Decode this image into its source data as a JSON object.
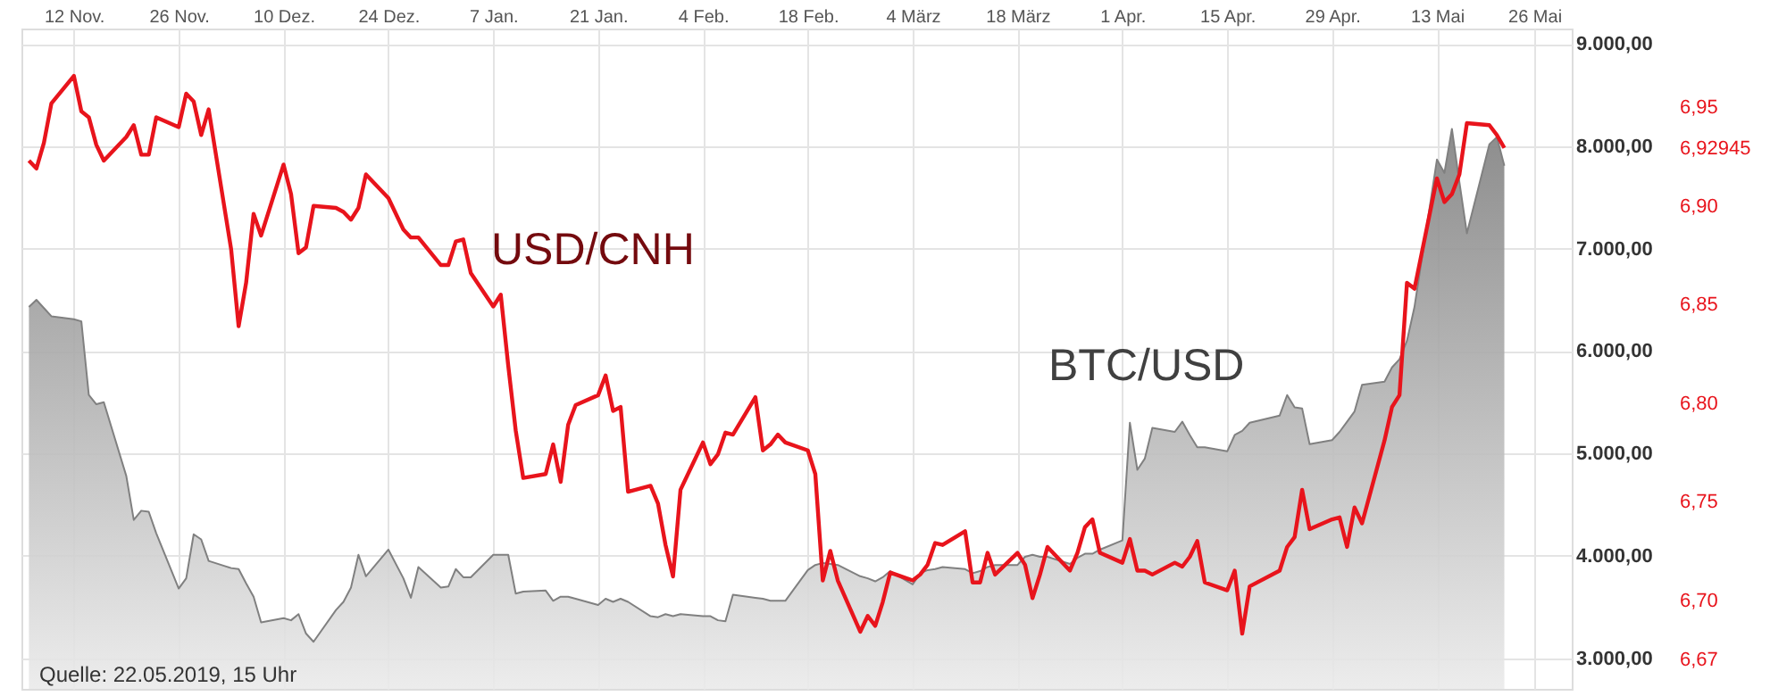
{
  "chart_data": {
    "type": "line",
    "annotations": [
      "Quelle: 22.05.2019, 15 Uhr"
    ],
    "xlim": [
      "2018-11-05",
      "2019-05-31"
    ],
    "xticks": [
      {
        "value": "2018-11-12",
        "label": "12 Nov."
      },
      {
        "value": "2018-11-26",
        "label": "26 Nov."
      },
      {
        "value": "2018-12-10",
        "label": "10 Dez."
      },
      {
        "value": "2018-12-24",
        "label": "24 Dez."
      },
      {
        "value": "2019-01-07",
        "label": "7 Jan."
      },
      {
        "value": "2019-01-21",
        "label": "21 Jan."
      },
      {
        "value": "2019-02-04",
        "label": "4 Feb."
      },
      {
        "value": "2019-02-18",
        "label": "18 Feb."
      },
      {
        "value": "2019-03-04",
        "label": "4 März"
      },
      {
        "value": "2019-03-18",
        "label": "18 März"
      },
      {
        "value": "2019-04-01",
        "label": "1 Apr."
      },
      {
        "value": "2019-04-15",
        "label": "15 Apr."
      },
      {
        "value": "2019-04-29",
        "label": "29 Apr."
      },
      {
        "value": "2019-05-13",
        "label": "13 Mai"
      },
      {
        "value": "2019-05-26",
        "label": "26 Mai"
      }
    ],
    "ylim": [
      2700,
      9150
    ],
    "yticks": [
      {
        "value": 3000,
        "label": "3.000,00"
      },
      {
        "value": 4000,
        "label": "4.000,00"
      },
      {
        "value": 5000,
        "label": "5.000,00"
      },
      {
        "value": 6000,
        "label": "6.000,00"
      },
      {
        "value": 7000,
        "label": "7.000,00"
      },
      {
        "value": 8000,
        "label": "8.000,00"
      },
      {
        "value": 9000,
        "label": "9.000,00"
      }
    ],
    "y2lim": [
      6.655,
      6.99
    ],
    "y2ticks": [
      {
        "value": 6.67,
        "label": "6,67"
      },
      {
        "value": 6.7,
        "label": "6,70"
      },
      {
        "value": 6.75,
        "label": "6,75"
      },
      {
        "value": 6.8,
        "label": "6,80"
      },
      {
        "value": 6.85,
        "label": "6,85"
      },
      {
        "value": 6.9,
        "label": "6,90"
      },
      {
        "value": 6.92945,
        "label": "6,92945"
      },
      {
        "value": 6.95,
        "label": "6,95"
      }
    ],
    "grid": true,
    "marker": "none",
    "line_style": "solid",
    "x": [
      "2018-11-06",
      "2018-11-07",
      "2018-11-08",
      "2018-11-09",
      "2018-11-12",
      "2018-11-13",
      "2018-11-14",
      "2018-11-15",
      "2018-11-16",
      "2018-11-19",
      "2018-11-20",
      "2018-11-21",
      "2018-11-22",
      "2018-11-23",
      "2018-11-26",
      "2018-11-27",
      "2018-11-28",
      "2018-11-29",
      "2018-11-30",
      "2018-12-03",
      "2018-12-04",
      "2018-12-05",
      "2018-12-06",
      "2018-12-07",
      "2018-12-10",
      "2018-12-11",
      "2018-12-12",
      "2018-12-13",
      "2018-12-14",
      "2018-12-17",
      "2018-12-18",
      "2018-12-19",
      "2018-12-20",
      "2018-12-21",
      "2018-12-24",
      "2018-12-26",
      "2018-12-27",
      "2018-12-28",
      "2018-12-31",
      "2019-01-01",
      "2019-01-02",
      "2019-01-03",
      "2019-01-04",
      "2019-01-07",
      "2019-01-08",
      "2019-01-09",
      "2019-01-10",
      "2019-01-11",
      "2019-01-14",
      "2019-01-15",
      "2019-01-16",
      "2019-01-17",
      "2019-01-18",
      "2019-01-21",
      "2019-01-22",
      "2019-01-23",
      "2019-01-24",
      "2019-01-25",
      "2019-01-28",
      "2019-01-29",
      "2019-01-30",
      "2019-01-31",
      "2019-02-01",
      "2019-02-04",
      "2019-02-05",
      "2019-02-06",
      "2019-02-07",
      "2019-02-08",
      "2019-02-11",
      "2019-02-12",
      "2019-02-13",
      "2019-02-14",
      "2019-02-15",
      "2019-02-18",
      "2019-02-19",
      "2019-02-20",
      "2019-02-21",
      "2019-02-22",
      "2019-02-25",
      "2019-02-26",
      "2019-02-27",
      "2019-02-28",
      "2019-03-01",
      "2019-03-04",
      "2019-03-05",
      "2019-03-06",
      "2019-03-07",
      "2019-03-08",
      "2019-03-11",
      "2019-03-12",
      "2019-03-13",
      "2019-03-14",
      "2019-03-15",
      "2019-03-18",
      "2019-03-19",
      "2019-03-20",
      "2019-03-21",
      "2019-03-22",
      "2019-03-25",
      "2019-03-26",
      "2019-03-27",
      "2019-03-28",
      "2019-03-29",
      "2019-04-01",
      "2019-04-02",
      "2019-04-03",
      "2019-04-04",
      "2019-04-05",
      "2019-04-08",
      "2019-04-09",
      "2019-04-10",
      "2019-04-11",
      "2019-04-12",
      "2019-04-15",
      "2019-04-16",
      "2019-04-17",
      "2019-04-18",
      "2019-04-22",
      "2019-04-23",
      "2019-04-24",
      "2019-04-25",
      "2019-04-26",
      "2019-04-29",
      "2019-04-30",
      "2019-05-01",
      "2019-05-02",
      "2019-05-03",
      "2019-05-06",
      "2019-05-07",
      "2019-05-08",
      "2019-05-09",
      "2019-05-10",
      "2019-05-13",
      "2019-05-14",
      "2019-05-15",
      "2019-05-16",
      "2019-05-17",
      "2019-05-20",
      "2019-05-21",
      "2019-05-22"
    ],
    "series": [
      {
        "name": "BTC/USD",
        "type": "area",
        "color": "#808080",
        "values": [
          6430,
          6500,
          6420,
          6340,
          6310,
          6290,
          5570,
          5480,
          5500,
          4780,
          4350,
          4440,
          4430,
          4220,
          3680,
          3780,
          4210,
          4160,
          3950,
          3880,
          3870,
          3730,
          3600,
          3350,
          3390,
          3370,
          3430,
          3240,
          3160,
          3470,
          3550,
          3690,
          4010,
          3800,
          4060,
          3780,
          3590,
          3890,
          3690,
          3700,
          3870,
          3790,
          3790,
          4010,
          4010,
          4010,
          3630,
          3650,
          3660,
          3560,
          3600,
          3600,
          3580,
          3520,
          3580,
          3550,
          3580,
          3550,
          3410,
          3400,
          3430,
          3410,
          3430,
          3410,
          3410,
          3370,
          3360,
          3620,
          3590,
          3580,
          3560,
          3560,
          3560,
          3860,
          3910,
          3930,
          3920,
          3910,
          3800,
          3780,
          3750,
          3790,
          3850,
          3720,
          3830,
          3860,
          3870,
          3890,
          3870,
          3830,
          3850,
          3890,
          3910,
          3910,
          3990,
          4010,
          3990,
          3990,
          3920,
          3980,
          4020,
          4020,
          4060,
          4150,
          5300,
          4840,
          4950,
          5250,
          5210,
          5310,
          5180,
          5060,
          5060,
          5020,
          5180,
          5220,
          5300,
          5370,
          5570,
          5450,
          5440,
          5090,
          5130,
          5210,
          5310,
          5410,
          5670,
          5700,
          5840,
          5920,
          6100,
          6430,
          7870,
          7740,
          8170,
          7650,
          7150,
          8020,
          8090,
          7810
        ]
      },
      {
        "name": "USD/CNH",
        "type": "line",
        "axis": "y2",
        "color": "#e8141c",
        "values": [
          6.923,
          6.919,
          6.932,
          6.952,
          6.966,
          6.948,
          6.945,
          6.931,
          6.923,
          6.935,
          6.941,
          6.926,
          6.926,
          6.945,
          6.94,
          6.957,
          6.953,
          6.936,
          6.949,
          6.878,
          6.839,
          6.861,
          6.896,
          6.885,
          6.921,
          6.906,
          6.876,
          6.879,
          6.9,
          6.899,
          6.897,
          6.893,
          6.899,
          6.916,
          6.904,
          6.888,
          6.884,
          6.884,
          6.87,
          6.87,
          6.882,
          6.883,
          6.866,
          6.849,
          6.855,
          6.819,
          6.786,
          6.762,
          6.764,
          6.779,
          6.76,
          6.789,
          6.799,
          6.804,
          6.814,
          6.796,
          6.798,
          6.755,
          6.758,
          6.749,
          6.728,
          6.712,
          6.756,
          6.78,
          6.769,
          6.774,
          6.785,
          6.784,
          6.803,
          6.776,
          6.779,
          6.784,
          6.78,
          6.776,
          6.764,
          6.71,
          6.725,
          6.71,
          6.684,
          6.692,
          6.687,
          6.699,
          6.714,
          6.71,
          6.713,
          6.718,
          6.729,
          6.728,
          6.735,
          6.709,
          6.709,
          6.724,
          6.713,
          6.724,
          6.718,
          6.701,
          6.713,
          6.727,
          6.715,
          6.724,
          6.737,
          6.741,
          6.724,
          6.719,
          6.731,
          6.715,
          6.715,
          6.713,
          6.719,
          6.717,
          6.722,
          6.73,
          6.709,
          6.705,
          6.715,
          6.683,
          6.707,
          6.715,
          6.727,
          6.732,
          6.756,
          6.736,
          6.741,
          6.742,
          6.727,
          6.747,
          6.739,
          6.781,
          6.798,
          6.804,
          6.861,
          6.858,
          6.914,
          6.902,
          6.906,
          6.916,
          6.942,
          6.941,
          6.936,
          6.92945
        ]
      }
    ]
  }
}
